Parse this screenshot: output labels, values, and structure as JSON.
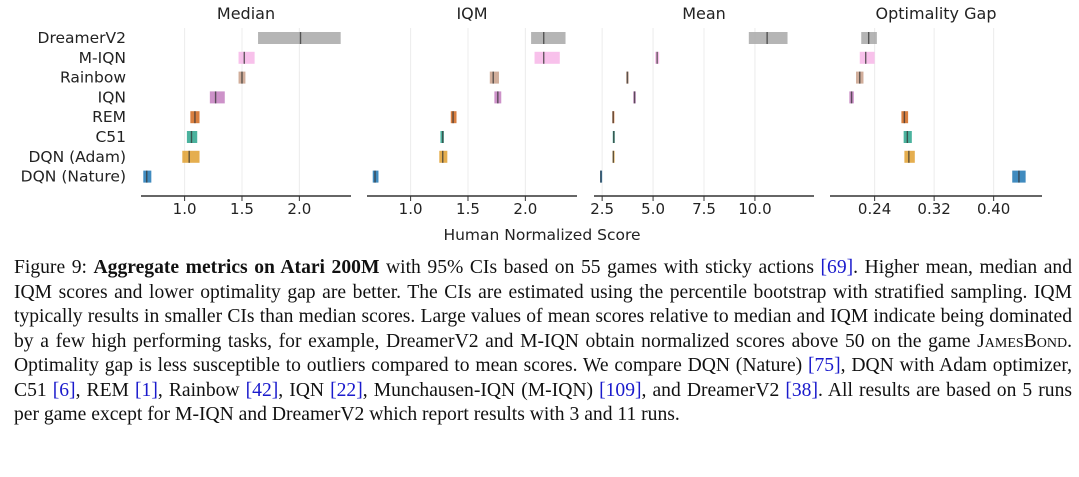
{
  "chart_data": {
    "type": "interval",
    "xlabel": "Human Normalized Score",
    "algorithms": [
      "DreamerV2",
      "M-IQN",
      "Rainbow",
      "IQN",
      "REM",
      "C51",
      "DQN (Adam)",
      "DQN (Nature)"
    ],
    "colors": {
      "DreamerV2": "#a8a8a8",
      "M-IQN": "#f7b6e8",
      "Rainbow": "#c9a08a",
      "IQN": "#c47fbf",
      "REM": "#d2691e",
      "C51": "#2ca58d",
      "DQN (Adam)": "#e0a030",
      "DQN (Nature)": "#1f77b4"
    },
    "panels": [
      {
        "title": "Median",
        "xlim": [
          0.62,
          2.45
        ],
        "ticks": [
          {
            "v": 1.0,
            "label": "1.0"
          },
          {
            "v": 1.5,
            "label": "1.5"
          },
          {
            "v": 2.0,
            "label": "2.0"
          }
        ],
        "intervals": [
          {
            "algo": "DreamerV2",
            "lo": 1.64,
            "mid": 2.01,
            "hi": 2.36
          },
          {
            "algo": "M-IQN",
            "lo": 1.47,
            "mid": 1.52,
            "hi": 1.61
          },
          {
            "algo": "Rainbow",
            "lo": 1.47,
            "mid": 1.5,
            "hi": 1.53
          },
          {
            "algo": "IQN",
            "lo": 1.22,
            "mid": 1.27,
            "hi": 1.35
          },
          {
            "algo": "REM",
            "lo": 1.05,
            "mid": 1.09,
            "hi": 1.13
          },
          {
            "algo": "C51",
            "lo": 1.02,
            "mid": 1.06,
            "hi": 1.11
          },
          {
            "algo": "DQN (Adam)",
            "lo": 0.98,
            "mid": 1.04,
            "hi": 1.13
          },
          {
            "algo": "DQN (Nature)",
            "lo": 0.64,
            "mid": 0.67,
            "hi": 0.71
          }
        ]
      },
      {
        "title": "IQM",
        "xlim": [
          0.62,
          2.45
        ],
        "ticks": [
          {
            "v": 1.0,
            "label": "1.0"
          },
          {
            "v": 1.5,
            "label": "1.5"
          },
          {
            "v": 2.0,
            "label": "2.0"
          }
        ],
        "intervals": [
          {
            "algo": "DreamerV2",
            "lo": 2.05,
            "mid": 2.16,
            "hi": 2.35
          },
          {
            "algo": "M-IQN",
            "lo": 2.08,
            "mid": 2.16,
            "hi": 2.3
          },
          {
            "algo": "Rainbow",
            "lo": 1.69,
            "mid": 1.72,
            "hi": 1.77
          },
          {
            "algo": "IQN",
            "lo": 1.73,
            "mid": 1.76,
            "hi": 1.79
          },
          {
            "algo": "REM",
            "lo": 1.35,
            "mid": 1.37,
            "hi": 1.4
          },
          {
            "algo": "C51",
            "lo": 1.26,
            "mid": 1.28,
            "hi": 1.29
          },
          {
            "algo": "DQN (Adam)",
            "lo": 1.25,
            "mid": 1.28,
            "hi": 1.32
          },
          {
            "algo": "DQN (Nature)",
            "lo": 0.67,
            "mid": 0.69,
            "hi": 0.72
          }
        ]
      },
      {
        "title": "Mean",
        "xlim": [
          2.1,
          12.9
        ],
        "ticks": [
          {
            "v": 2.5,
            "label": "2.5"
          },
          {
            "v": 5.0,
            "label": "5.0"
          },
          {
            "v": 7.5,
            "label": "7.5"
          },
          {
            "v": 10.0,
            "label": "10.0"
          }
        ],
        "intervals": [
          {
            "algo": "DreamerV2",
            "lo": 9.7,
            "mid": 10.6,
            "hi": 11.6
          },
          {
            "algo": "M-IQN",
            "lo": 5.1,
            "mid": 5.2,
            "hi": 5.3
          },
          {
            "algo": "Rainbow",
            "lo": 3.68,
            "mid": 3.74,
            "hi": 3.8
          },
          {
            "algo": "IQN",
            "lo": 4.03,
            "mid": 4.09,
            "hi": 4.15
          },
          {
            "algo": "REM",
            "lo": 3.0,
            "mid": 3.04,
            "hi": 3.08
          },
          {
            "algo": "C51",
            "lo": 3.02,
            "mid": 3.07,
            "hi": 3.12
          },
          {
            "algo": "DQN (Adam)",
            "lo": 3.01,
            "mid": 3.05,
            "hi": 3.09
          },
          {
            "algo": "DQN (Nature)",
            "lo": 2.4,
            "mid": 2.44,
            "hi": 2.48
          }
        ]
      },
      {
        "title": "Optimality Gap",
        "xlim": [
          0.18,
          0.465
        ],
        "ticks": [
          {
            "v": 0.24,
            "label": "0.24"
          },
          {
            "v": 0.32,
            "label": "0.32"
          },
          {
            "v": 0.4,
            "label": "0.40"
          }
        ],
        "intervals": [
          {
            "algo": "DreamerV2",
            "lo": 0.222,
            "mid": 0.232,
            "hi": 0.243
          },
          {
            "algo": "M-IQN",
            "lo": 0.22,
            "mid": 0.228,
            "hi": 0.24
          },
          {
            "algo": "Rainbow",
            "lo": 0.215,
            "mid": 0.22,
            "hi": 0.225
          },
          {
            "algo": "IQN",
            "lo": 0.206,
            "mid": 0.209,
            "hi": 0.212
          },
          {
            "algo": "REM",
            "lo": 0.276,
            "mid": 0.28,
            "hi": 0.285
          },
          {
            "algo": "C51",
            "lo": 0.279,
            "mid": 0.284,
            "hi": 0.29
          },
          {
            "algo": "DQN (Adam)",
            "lo": 0.28,
            "mid": 0.286,
            "hi": 0.294
          },
          {
            "algo": "DQN (Nature)",
            "lo": 0.425,
            "mid": 0.434,
            "hi": 0.443
          }
        ]
      }
    ]
  },
  "caption": {
    "figure_label": "Figure 9: ",
    "bold_text": "Aggregate metrics on Atari 200M",
    "t1": " with 95% CIs based on 55 games with sticky actions ",
    "r1": "[69]",
    "t2": ". Higher mean, median and IQM scores and lower optimality gap are better. The CIs are estimated using the percentile bootstrap with stratified sampling. IQM typically results in smaller CIs than median scores. Large values of mean scores relative to median and IQM indicate being dominated by a few high performing tasks, for example, DreamerV2 and M-IQN obtain normalized scores above 50 on the game ",
    "game": "JamesBond",
    "t3": ". Optimality gap is less susceptible to outliers compared to mean scores. We compare DQN (Nature) ",
    "r2": "[75]",
    "t4": ", DQN with Adam optimizer, C51 ",
    "r3": "[6]",
    "t5": ", REM ",
    "r4": "[1]",
    "t6": ", Rainbow ",
    "r5": "[42]",
    "t7": ", IQN ",
    "r6": "[22]",
    "t8": ", Munchausen-IQN (M-IQN) ",
    "r7": "[109]",
    "t9": ", and DreamerV2 ",
    "r8": "[38]",
    "t10": ". All results are based on 5 runs per game except for M-IQN and DreamerV2 which report results with 3 and 11 runs."
  }
}
